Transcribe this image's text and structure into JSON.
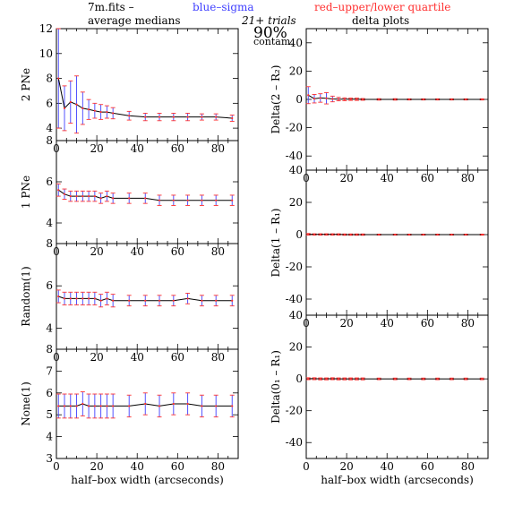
{
  "header": {
    "file_label": "7m.fits  –",
    "blue_label": "blue–sigma",
    "red_label": "red–upper/lower quartile",
    "left_title": "average medians",
    "trials": "21+ trials",
    "right_title": "delta plots",
    "contam_value": "90%",
    "contam_label": "contam."
  },
  "colors": {
    "axis": "#000000",
    "median_line": "#000000",
    "sigma": "#4040ff",
    "quartile": "#ff3030"
  },
  "chart_data": [
    {
      "type": "line",
      "panel": "left-1",
      "ylabel": "2 PNe",
      "xlabel": "",
      "xlim": [
        0,
        90
      ],
      "ylim": [
        3,
        12
      ],
      "yticks": [
        4,
        6,
        8,
        10,
        12
      ],
      "xticks": [
        0,
        20,
        40,
        60,
        80
      ],
      "x": [
        1,
        4,
        7,
        10,
        13,
        16,
        19,
        22,
        25,
        28,
        36,
        44,
        51,
        58,
        65,
        72,
        79,
        87
      ],
      "y": [
        8.0,
        5.6,
        6.1,
        5.9,
        5.6,
        5.5,
        5.4,
        5.3,
        5.3,
        5.2,
        5.0,
        4.9,
        4.9,
        4.9,
        4.9,
        4.9,
        4.9,
        4.8
      ],
      "err": [
        4.0,
        1.8,
        1.7,
        2.3,
        1.3,
        0.8,
        0.6,
        0.6,
        0.5,
        0.45,
        0.35,
        0.3,
        0.3,
        0.3,
        0.3,
        0.25,
        0.25,
        0.25
      ]
    },
    {
      "type": "line",
      "panel": "left-2",
      "ylabel": "1 PNe",
      "xlabel": "",
      "xlim": [
        0,
        90
      ],
      "ylim": [
        3,
        8
      ],
      "yticks": [
        4,
        6,
        8
      ],
      "xticks": [
        0,
        20,
        40,
        60,
        80
      ],
      "x": [
        1,
        4,
        7,
        10,
        13,
        16,
        19,
        22,
        25,
        28,
        36,
        44,
        51,
        58,
        65,
        72,
        79,
        87
      ],
      "y": [
        5.6,
        5.4,
        5.3,
        5.3,
        5.3,
        5.3,
        5.3,
        5.2,
        5.3,
        5.2,
        5.2,
        5.2,
        5.1,
        5.1,
        5.1,
        5.1,
        5.1,
        5.1
      ],
      "err": [
        0.3,
        0.25,
        0.25,
        0.25,
        0.25,
        0.25,
        0.25,
        0.25,
        0.25,
        0.25,
        0.25,
        0.25,
        0.25,
        0.25,
        0.25,
        0.25,
        0.25,
        0.25
      ]
    },
    {
      "type": "line",
      "panel": "left-3",
      "ylabel": "Random(1)",
      "xlabel": "",
      "xlim": [
        0,
        90
      ],
      "ylim": [
        3,
        8
      ],
      "yticks": [
        4,
        6,
        8
      ],
      "xticks": [
        0,
        20,
        40,
        60,
        80
      ],
      "x": [
        1,
        4,
        7,
        10,
        13,
        16,
        19,
        22,
        25,
        28,
        36,
        44,
        51,
        58,
        65,
        72,
        79,
        87
      ],
      "y": [
        5.5,
        5.4,
        5.4,
        5.4,
        5.4,
        5.4,
        5.4,
        5.3,
        5.4,
        5.3,
        5.3,
        5.3,
        5.3,
        5.3,
        5.4,
        5.3,
        5.3,
        5.3
      ],
      "err": [
        0.3,
        0.3,
        0.3,
        0.3,
        0.3,
        0.3,
        0.3,
        0.3,
        0.3,
        0.3,
        0.25,
        0.25,
        0.25,
        0.25,
        0.25,
        0.25,
        0.25,
        0.25
      ]
    },
    {
      "type": "line",
      "panel": "left-4",
      "ylabel": "None(1)",
      "xlabel": "half–box width (arcseconds)",
      "xlim": [
        0,
        90
      ],
      "ylim": [
        3,
        8
      ],
      "yticks": [
        3,
        4,
        5,
        6,
        7,
        8
      ],
      "xticks": [
        0,
        20,
        40,
        60,
        80
      ],
      "x": [
        1,
        4,
        7,
        10,
        13,
        16,
        19,
        22,
        25,
        28,
        36,
        44,
        51,
        58,
        65,
        72,
        79,
        87
      ],
      "y": [
        5.4,
        5.4,
        5.4,
        5.4,
        5.5,
        5.4,
        5.4,
        5.4,
        5.4,
        5.4,
        5.4,
        5.5,
        5.4,
        5.5,
        5.5,
        5.4,
        5.4,
        5.4
      ],
      "err": [
        0.55,
        0.55,
        0.55,
        0.55,
        0.55,
        0.55,
        0.55,
        0.55,
        0.55,
        0.55,
        0.5,
        0.5,
        0.5,
        0.5,
        0.5,
        0.5,
        0.5,
        0.5
      ]
    },
    {
      "type": "line",
      "panel": "right-1",
      "ylabel": "Delta(2 – R₂)",
      "xlabel": "",
      "xlim": [
        0,
        90
      ],
      "ylim": [
        -50,
        50
      ],
      "yticks": [
        -40,
        -20,
        0,
        20,
        40
      ],
      "xticks": [
        0,
        20,
        40,
        60,
        80
      ],
      "x": [
        1,
        4,
        7,
        10,
        13,
        16,
        19,
        22,
        25,
        28,
        36,
        44,
        51,
        58,
        65,
        72,
        79,
        87
      ],
      "y": [
        3.0,
        0.5,
        1.0,
        0.8,
        0.3,
        0.2,
        0.1,
        0.1,
        0.1,
        0,
        0,
        0,
        0,
        0,
        0,
        0,
        0,
        0
      ],
      "err": [
        6.0,
        3.0,
        3.0,
        4.0,
        2.0,
        1.2,
        1.0,
        0.8,
        0.8,
        0.6,
        0.5,
        0.5,
        0.4,
        0.4,
        0.4,
        0.4,
        0.4,
        0.4
      ]
    },
    {
      "type": "line",
      "panel": "right-2",
      "ylabel": "Delta(1 – R₁)",
      "xlabel": "",
      "xlim": [
        0,
        90
      ],
      "ylim": [
        -50,
        40
      ],
      "yticks": [
        -40,
        -20,
        0,
        20,
        40
      ],
      "xticks": [
        0,
        20,
        40,
        60,
        80
      ],
      "x": [
        1,
        4,
        7,
        10,
        13,
        16,
        19,
        22,
        25,
        28,
        36,
        44,
        51,
        58,
        65,
        72,
        79,
        87
      ],
      "y": [
        0.2,
        0.1,
        0.1,
        0.1,
        0.1,
        0.1,
        0,
        0,
        0,
        0,
        0,
        0,
        0,
        0,
        0,
        0,
        0,
        0
      ],
      "err": [
        0.5,
        0.4,
        0.4,
        0.4,
        0.4,
        0.4,
        0.4,
        0.4,
        0.4,
        0.4,
        0.3,
        0.3,
        0.3,
        0.3,
        0.3,
        0.3,
        0.3,
        0.3
      ]
    },
    {
      "type": "line",
      "panel": "right-3",
      "ylabel": "Delta(0₁ – R₁)",
      "xlabel": "half–box width (arcseconds)",
      "xlim": [
        0,
        90
      ],
      "ylim": [
        -50,
        40
      ],
      "yticks": [
        -40,
        -20,
        0,
        20,
        40
      ],
      "xticks": [
        0,
        20,
        40,
        60,
        80
      ],
      "x": [
        1,
        4,
        7,
        10,
        13,
        16,
        19,
        22,
        25,
        28,
        36,
        44,
        51,
        58,
        65,
        72,
        79,
        87
      ],
      "y": [
        0.1,
        0.1,
        0,
        0,
        0.1,
        0,
        0,
        0,
        0,
        0,
        0,
        0,
        0,
        0,
        0,
        0,
        0,
        0
      ],
      "err": [
        0.6,
        0.6,
        0.6,
        0.6,
        0.6,
        0.6,
        0.6,
        0.6,
        0.6,
        0.6,
        0.5,
        0.5,
        0.5,
        0.5,
        0.5,
        0.5,
        0.5,
        0.5
      ]
    }
  ]
}
